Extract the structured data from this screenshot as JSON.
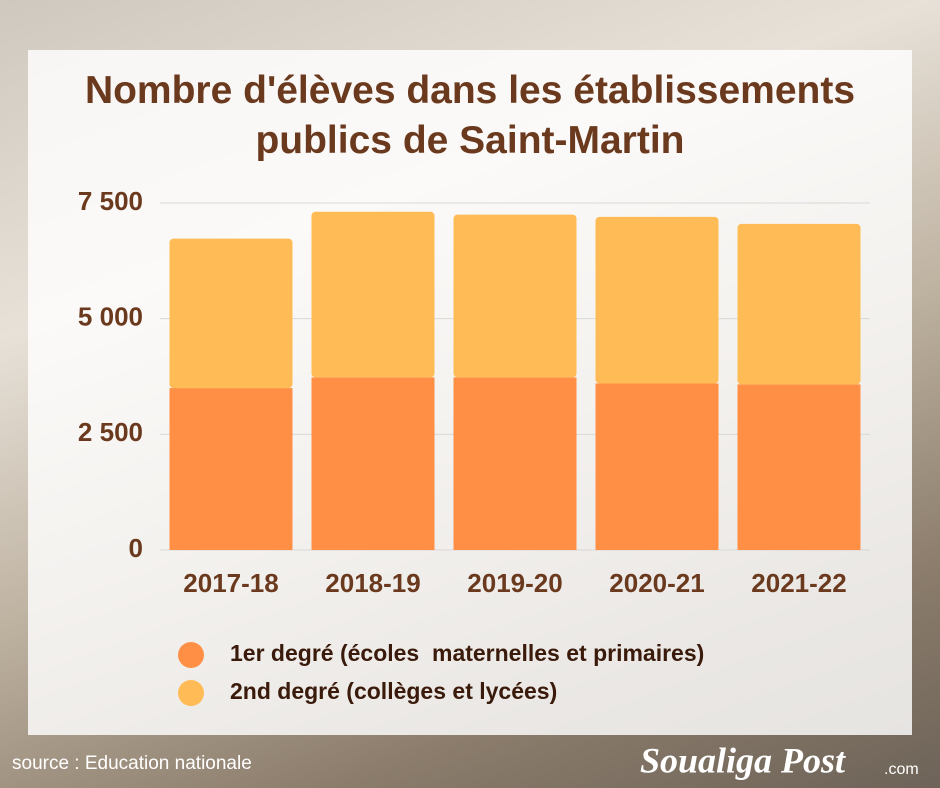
{
  "chart_data": {
    "type": "stacked_bar",
    "title": "Nombre d'élèves dans les établissements publics de Saint-Martin",
    "categories": [
      "2017-18",
      "2018-19",
      "2019-20",
      "2020-21",
      "2021-22"
    ],
    "series": [
      {
        "name": "1er degré (écoles  maternelles et primaires)",
        "color": "#ff8f45",
        "values": [
          3500,
          3730,
          3730,
          3600,
          3580
        ]
      },
      {
        "name": "2nd degré (collèges et lycées)",
        "color": "#ffbb55",
        "values": [
          3230,
          3580,
          3520,
          3600,
          3470
        ]
      }
    ],
    "ylim": [
      0,
      7500
    ],
    "yticks": [
      0,
      {
        "value": 2500,
        "label": "2 500"
      },
      {
        "value": 5000,
        "label": "5 000"
      },
      {
        "value": 7500,
        "label": "7 500"
      }
    ],
    "grid": true
  },
  "source": "source : Education nationale",
  "logo": "Soualiga Post",
  "logo_suffix": ".com"
}
